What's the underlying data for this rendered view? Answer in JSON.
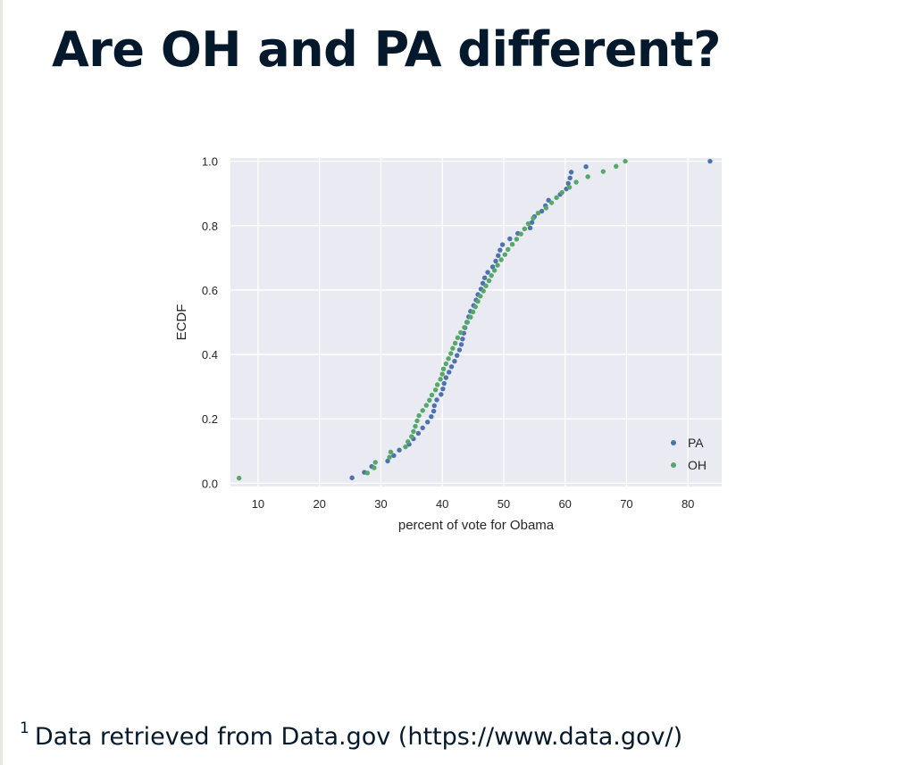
{
  "slide": {
    "title": "Are OH and PA different?",
    "footnote_mark": "1",
    "footnote_text": "Data retrieved from Data.gov (https://www.data.gov/)"
  },
  "chart_data": {
    "type": "scatter",
    "title": "",
    "xlabel": "percent of vote for Obama",
    "ylabel": "ECDF",
    "xlim": [
      5.5,
      85.5
    ],
    "ylim": [
      -0.01,
      1.01
    ],
    "x_ticks": [
      10,
      20,
      30,
      40,
      50,
      60,
      70,
      80
    ],
    "y_ticks": [
      0.0,
      0.2,
      0.4,
      0.6,
      0.8,
      1.0
    ],
    "x_tick_labels": [
      "10",
      "20",
      "30",
      "40",
      "50",
      "60",
      "70",
      "80"
    ],
    "y_tick_labels": [
      "0.0",
      "0.2",
      "0.4",
      "0.6",
      "0.8",
      "1.0"
    ],
    "grid": true,
    "legend_position": "bottom-right",
    "series": [
      {
        "name": "PA",
        "color": "#4c72b0",
        "x": [
          25.3,
          27.3,
          28.5,
          31.1,
          32.1,
          33.0,
          34.6,
          35.3,
          36.1,
          36.8,
          37.6,
          38.2,
          38.6,
          38.7,
          39.1,
          39.8,
          40.1,
          40.3,
          40.6,
          41.1,
          41.5,
          42.0,
          42.4,
          42.8,
          43.1,
          43.3,
          43.5,
          43.7,
          44.0,
          44.3,
          44.6,
          45.1,
          45.5,
          45.8,
          46.3,
          46.6,
          46.9,
          47.4,
          48.2,
          48.7,
          49.1,
          49.4,
          49.8,
          51.0,
          52.3,
          54.3,
          54.6,
          55.0,
          56.2,
          56.8,
          57.3,
          59.2,
          60.2,
          60.5,
          60.8,
          61.0,
          63.4,
          83.6
        ],
        "y": [
          0.017,
          0.034,
          0.052,
          0.069,
          0.086,
          0.103,
          0.121,
          0.138,
          0.155,
          0.172,
          0.19,
          0.207,
          0.224,
          0.241,
          0.259,
          0.276,
          0.293,
          0.31,
          0.328,
          0.345,
          0.362,
          0.379,
          0.397,
          0.414,
          0.431,
          0.448,
          0.466,
          0.483,
          0.5,
          0.517,
          0.534,
          0.552,
          0.569,
          0.586,
          0.603,
          0.621,
          0.638,
          0.655,
          0.672,
          0.69,
          0.707,
          0.724,
          0.741,
          0.759,
          0.776,
          0.793,
          0.81,
          0.828,
          0.845,
          0.862,
          0.879,
          0.897,
          0.914,
          0.931,
          0.948,
          0.966,
          0.983,
          1.0
        ]
      },
      {
        "name": "OH",
        "color": "#55a868",
        "x": [
          6.9,
          27.8,
          28.9,
          29.1,
          31.4,
          31.6,
          34.0,
          34.4,
          35.0,
          35.3,
          35.6,
          35.9,
          36.2,
          36.8,
          37.4,
          37.9,
          38.3,
          38.9,
          39.2,
          39.7,
          40.0,
          40.2,
          40.6,
          41.0,
          41.4,
          41.7,
          42.1,
          42.5,
          43.0,
          43.6,
          44.1,
          44.6,
          45.0,
          45.4,
          45.8,
          46.2,
          46.7,
          47.1,
          47.6,
          48.0,
          48.5,
          49.0,
          49.6,
          50.2,
          50.7,
          51.4,
          52.1,
          52.8,
          53.4,
          54.0,
          54.8,
          55.6,
          56.9,
          57.8,
          58.6,
          59.5,
          60.7,
          61.8,
          63.7,
          66.2,
          68.3,
          69.8
        ],
        "y": [
          0.016,
          0.032,
          0.048,
          0.065,
          0.081,
          0.097,
          0.113,
          0.129,
          0.145,
          0.161,
          0.177,
          0.194,
          0.21,
          0.226,
          0.242,
          0.258,
          0.274,
          0.29,
          0.306,
          0.323,
          0.339,
          0.355,
          0.371,
          0.387,
          0.403,
          0.419,
          0.435,
          0.452,
          0.468,
          0.484,
          0.5,
          0.516,
          0.532,
          0.548,
          0.565,
          0.581,
          0.597,
          0.613,
          0.629,
          0.645,
          0.661,
          0.677,
          0.694,
          0.71,
          0.726,
          0.742,
          0.758,
          0.774,
          0.79,
          0.806,
          0.823,
          0.839,
          0.855,
          0.871,
          0.887,
          0.903,
          0.919,
          0.935,
          0.952,
          0.968,
          0.984,
          1.0
        ]
      }
    ]
  }
}
